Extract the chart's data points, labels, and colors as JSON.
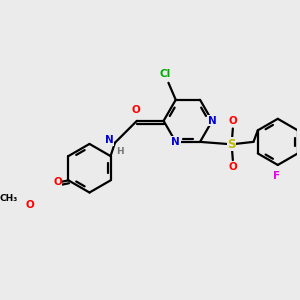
{
  "background_color": "#ebebeb",
  "bond_color": "#000000",
  "colors": {
    "N": "#0000dd",
    "O": "#ff0000",
    "S": "#bbbb00",
    "Cl": "#00aa00",
    "F": "#ee00ee",
    "C": "#000000",
    "H": "#777777"
  }
}
